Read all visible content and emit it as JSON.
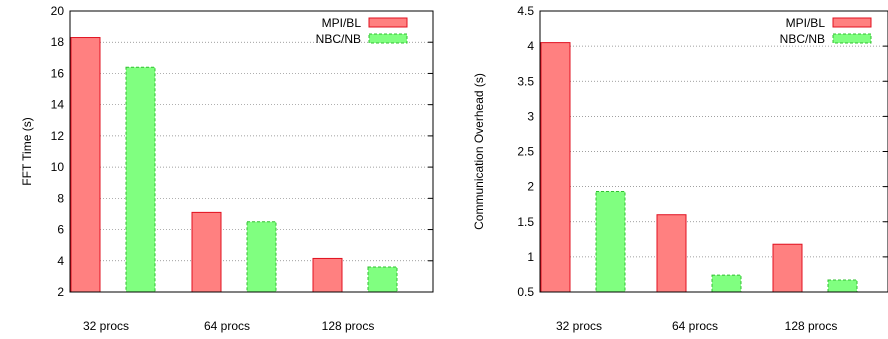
{
  "chart_data": [
    {
      "type": "bar",
      "title": "",
      "xlabel": "",
      "ylabel": "FFT Time (s)",
      "categories": [
        "32 procs",
        "64 procs",
        "128 procs"
      ],
      "ylim": [
        2,
        20
      ],
      "yticks": [
        "2",
        "4",
        "6",
        "8",
        "10",
        "12",
        "14",
        "16",
        "18",
        "20"
      ],
      "grid": true,
      "legend_position": "top-right",
      "series": [
        {
          "name": "MPI/BL",
          "values": [
            18.3,
            7.1,
            4.15
          ],
          "color": "#ff8080",
          "stroke": "#e0101f"
        },
        {
          "name": "NBC/NB",
          "values": [
            16.4,
            6.5,
            3.6
          ],
          "color": "#80ff80",
          "stroke": "#30c030"
        }
      ]
    },
    {
      "type": "bar",
      "title": "",
      "xlabel": "",
      "ylabel": "Communication Overhead (s)",
      "categories": [
        "32 procs",
        "64 procs",
        "128 procs"
      ],
      "ylim": [
        0.5,
        4.5
      ],
      "yticks": [
        "0.5",
        "1",
        "1.5",
        "2",
        "2.5",
        "3",
        "3.5",
        "4",
        "4.5"
      ],
      "grid": true,
      "legend_position": "top-right",
      "series": [
        {
          "name": "MPI/BL",
          "values": [
            4.05,
            1.6,
            1.18
          ],
          "color": "#ff8080",
          "stroke": "#e0101f"
        },
        {
          "name": "NBC/NB",
          "values": [
            1.93,
            0.74,
            0.67
          ],
          "color": "#80ff80",
          "stroke": "#30c030"
        }
      ]
    }
  ]
}
